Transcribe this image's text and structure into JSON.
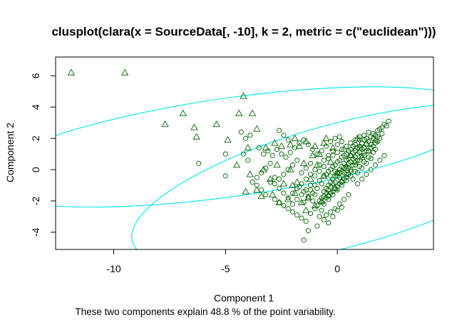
{
  "chart_data": {
    "type": "scatter",
    "title": "clusplot(clara(x = SourceData[, -10], k = 2, metric = c(\"euclidean\")))",
    "xlabel": "Component 1",
    "ylabel": "Component 2",
    "subtitle": "These two components explain 48.8 % of the point variability.",
    "xlim": [
      -12.6,
      4.3
    ],
    "ylim": [
      -5.1,
      7.2
    ],
    "xticks": [
      -10,
      -5,
      0
    ],
    "yticks": [
      -4,
      -2,
      0,
      2,
      4,
      6
    ],
    "grid": false,
    "legend": "none",
    "colors": {
      "points": "#006400",
      "ellipse": "#00e5ee",
      "frame": "#000000"
    },
    "clusters": [
      {
        "marker": "circle",
        "ellipse": {
          "center": [
            0.2,
            -1.0
          ],
          "rx": 9.7,
          "ry": 3.95,
          "rotation_deg": 15
        },
        "points": [
          [
            2.3,
            3.1
          ],
          [
            2.1,
            2.9
          ],
          [
            2.0,
            2.7
          ],
          [
            1.9,
            2.6
          ],
          [
            2.2,
            2.8
          ],
          [
            1.8,
            2.5
          ],
          [
            1.6,
            2.3
          ],
          [
            1.7,
            2.2
          ],
          [
            1.5,
            2.1
          ],
          [
            1.4,
            2.4
          ],
          [
            1.3,
            2.0
          ],
          [
            1.2,
            1.9
          ],
          [
            1.1,
            1.7
          ],
          [
            1.0,
            1.5
          ],
          [
            0.9,
            1.4
          ],
          [
            0.8,
            1.2
          ],
          [
            0.7,
            1.1
          ],
          [
            0.6,
            0.9
          ],
          [
            0.5,
            0.7
          ],
          [
            0.4,
            0.6
          ],
          [
            0.3,
            0.4
          ],
          [
            0.2,
            0.2
          ],
          [
            0.1,
            0.0
          ],
          [
            0.0,
            -0.2
          ],
          [
            -0.1,
            -0.4
          ],
          [
            -0.2,
            -0.6
          ],
          [
            -0.3,
            -0.8
          ],
          [
            -0.4,
            -1.0
          ],
          [
            -0.5,
            -1.2
          ],
          [
            -0.6,
            -1.4
          ],
          [
            1.5,
            1.6
          ],
          [
            1.3,
            1.2
          ],
          [
            1.1,
            0.9
          ],
          [
            0.9,
            0.6
          ],
          [
            0.7,
            0.3
          ],
          [
            0.5,
            0.1
          ],
          [
            0.3,
            -0.2
          ],
          [
            0.1,
            -0.5
          ],
          [
            -0.1,
            -0.8
          ],
          [
            -0.3,
            -1.1
          ],
          [
            -0.5,
            -1.5
          ],
          [
            -0.7,
            -1.8
          ],
          [
            1.6,
            1.1
          ],
          [
            1.4,
            0.8
          ],
          [
            1.2,
            0.5
          ],
          [
            1.0,
            0.2
          ],
          [
            0.8,
            -0.1
          ],
          [
            0.6,
            -0.4
          ],
          [
            0.4,
            -0.7
          ],
          [
            0.2,
            -1.0
          ],
          [
            0.0,
            -1.3
          ],
          [
            -0.2,
            -1.6
          ],
          [
            -0.4,
            -1.9
          ],
          [
            -0.6,
            -2.2
          ],
          [
            1.0,
            1.9
          ],
          [
            0.8,
            1.6
          ],
          [
            0.6,
            1.3
          ],
          [
            0.4,
            1.0
          ],
          [
            0.2,
            0.8
          ],
          [
            0.0,
            0.5
          ],
          [
            -0.2,
            0.2
          ],
          [
            -0.4,
            -0.1
          ],
          [
            -0.6,
            -0.4
          ],
          [
            -0.8,
            -0.7
          ],
          [
            -1.0,
            -1.0
          ],
          [
            -1.2,
            -1.3
          ],
          [
            1.9,
            2.0
          ],
          [
            1.7,
            1.7
          ],
          [
            1.5,
            1.4
          ],
          [
            1.3,
            1.6
          ],
          [
            1.1,
            1.3
          ],
          [
            0.9,
            1.0
          ],
          [
            0.7,
            0.7
          ],
          [
            0.5,
            0.4
          ],
          [
            0.3,
            0.1
          ],
          [
            0.1,
            -0.2
          ],
          [
            -0.1,
            -0.1
          ],
          [
            -0.3,
            -0.4
          ],
          [
            0.2,
            1.8
          ],
          [
            0.0,
            1.6
          ],
          [
            -0.2,
            1.2
          ],
          [
            -0.4,
            0.9
          ],
          [
            -0.6,
            0.6
          ],
          [
            -0.8,
            0.3
          ],
          [
            -1.0,
            0.0
          ],
          [
            -1.2,
            -0.3
          ],
          [
            -1.4,
            -0.6
          ],
          [
            -1.6,
            -0.9
          ],
          [
            -1.8,
            -1.2
          ],
          [
            -2.0,
            -1.5
          ],
          [
            0.5,
            -1.6
          ],
          [
            0.3,
            -1.9
          ],
          [
            0.1,
            -2.2
          ],
          [
            -0.1,
            -2.5
          ],
          [
            -0.3,
            -2.7
          ],
          [
            -0.5,
            -2.9
          ],
          [
            -0.7,
            -2.6
          ],
          [
            -0.9,
            -2.3
          ],
          [
            -1.1,
            -2.0
          ],
          [
            -1.3,
            -1.7
          ],
          [
            -1.5,
            -1.4
          ],
          [
            -1.7,
            -1.1
          ],
          [
            0.6,
            0.0
          ],
          [
            0.4,
            -0.3
          ],
          [
            0.9,
            -0.2
          ],
          [
            1.1,
            0.1
          ],
          [
            1.3,
            0.4
          ],
          [
            1.5,
            0.7
          ],
          [
            1.7,
            1.3
          ],
          [
            1.8,
            1.8
          ],
          [
            2.0,
            2.3
          ],
          [
            1.2,
            2.2
          ],
          [
            1.0,
            2.1
          ],
          [
            0.8,
            1.9
          ],
          [
            0.6,
            1.7
          ],
          [
            0.4,
            1.5
          ],
          [
            0.2,
            1.3
          ],
          [
            0.0,
            1.1
          ],
          [
            -0.2,
            0.9
          ],
          [
            -0.4,
            0.7
          ],
          [
            -0.6,
            0.2
          ],
          [
            -0.8,
            -0.1
          ],
          [
            -1.0,
            -0.4
          ],
          [
            -1.2,
            0.4
          ],
          [
            -1.4,
            0.1
          ],
          [
            -1.6,
            -0.2
          ],
          [
            -1.8,
            0.6
          ],
          [
            -2.0,
            0.3
          ],
          [
            -2.2,
            0.0
          ],
          [
            -2.4,
            -0.3
          ],
          [
            -2.6,
            -0.6
          ],
          [
            -2.8,
            -0.9
          ],
          [
            -3.0,
            0.4
          ],
          [
            -3.2,
            0.1
          ],
          [
            -3.4,
            -0.2
          ],
          [
            -3.6,
            -0.5
          ],
          [
            -3.8,
            -0.8
          ],
          [
            -2.5,
            1.0
          ],
          [
            -2.7,
            1.3
          ],
          [
            -2.9,
            0.9
          ],
          [
            -3.1,
            1.2
          ],
          [
            -3.3,
            1.0
          ],
          [
            -3.5,
            1.4
          ],
          [
            -2.3,
            0.8
          ],
          [
            -2.1,
            1.1
          ],
          [
            -1.9,
            1.4
          ],
          [
            -1.7,
            1.7
          ],
          [
            -1.5,
            1.9
          ],
          [
            -1.3,
            1.6
          ],
          [
            -1.1,
            1.3
          ],
          [
            -0.9,
            1.0
          ],
          [
            -0.7,
            1.2
          ],
          [
            -0.5,
            1.5
          ],
          [
            -0.3,
            1.8
          ],
          [
            -0.1,
            2.0
          ],
          [
            0.1,
            2.1
          ],
          [
            -2.6,
            2.5
          ],
          [
            -2.4,
            2.2
          ],
          [
            -2.2,
            1.9
          ],
          [
            -4.3,
            2.4
          ],
          [
            -3.9,
            2.2
          ],
          [
            -4.1,
            2.0
          ],
          [
            -5.0,
            1.0
          ],
          [
            -5.0,
            -0.4
          ],
          [
            -6.2,
            0.4
          ],
          [
            -4.2,
            1.0
          ],
          [
            -4.0,
            0.6
          ],
          [
            -3.6,
            -1.0
          ],
          [
            -3.4,
            -1.3
          ],
          [
            -3.2,
            -1.6
          ],
          [
            -2.8,
            -1.9
          ],
          [
            -2.6,
            -2.1
          ],
          [
            -2.4,
            -2.3
          ],
          [
            -2.2,
            -2.5
          ],
          [
            -2.0,
            -2.7
          ],
          [
            -1.8,
            -2.9
          ],
          [
            -1.6,
            -3.1
          ],
          [
            -1.4,
            -3.3
          ],
          [
            -1.2,
            -2.8
          ],
          [
            -1.0,
            -2.5
          ],
          [
            -0.8,
            -3.0
          ],
          [
            -0.6,
            -3.2
          ],
          [
            -0.4,
            -3.4
          ],
          [
            -0.2,
            -3.0
          ],
          [
            0.0,
            -2.6
          ],
          [
            0.2,
            -2.4
          ],
          [
            -1.3,
            -3.9
          ],
          [
            -1.5,
            -4.5
          ],
          [
            -0.9,
            -3.6
          ],
          [
            -0.7,
            -2.1
          ],
          [
            -0.5,
            -1.8
          ],
          [
            -0.3,
            -1.5
          ],
          [
            -0.1,
            -1.2
          ],
          [
            0.1,
            -0.9
          ],
          [
            0.3,
            -0.6
          ],
          [
            0.5,
            -0.3
          ],
          [
            0.7,
            -0.6
          ],
          [
            0.9,
            -0.9
          ],
          [
            1.1,
            -0.6
          ],
          [
            1.3,
            -0.3
          ],
          [
            1.5,
            0.0
          ],
          [
            1.7,
            0.3
          ],
          [
            1.9,
            0.6
          ],
          [
            2.1,
            0.9
          ],
          [
            1.6,
            2.0
          ],
          [
            1.4,
            1.8
          ],
          [
            1.2,
            1.4
          ],
          [
            1.0,
            1.1
          ],
          [
            0.8,
            0.8
          ],
          [
            0.6,
            0.5
          ],
          [
            0.4,
            0.2
          ],
          [
            0.2,
            -0.1
          ],
          [
            0.0,
            -0.4
          ],
          [
            -0.2,
            -0.9
          ],
          [
            -0.4,
            -1.3
          ],
          [
            -0.6,
            -1.7
          ],
          [
            -0.8,
            -2.0
          ],
          [
            -1.0,
            -1.6
          ],
          [
            -1.2,
            -1.0
          ],
          [
            -1.4,
            -1.3
          ],
          [
            -1.6,
            -1.6
          ],
          [
            -1.8,
            -1.9
          ],
          [
            -2.0,
            -2.2
          ],
          [
            -2.2,
            -1.8
          ],
          [
            -2.4,
            -1.5
          ],
          [
            -2.6,
            -1.2
          ],
          [
            -2.8,
            -0.5
          ],
          [
            -3.0,
            -0.8
          ],
          [
            0.7,
            1.5
          ],
          [
            0.5,
            1.2
          ],
          [
            0.3,
            0.9
          ],
          [
            0.1,
            0.6
          ],
          [
            -0.1,
            0.3
          ],
          [
            -0.3,
            0.0
          ],
          [
            -0.5,
            -0.3
          ],
          [
            -0.7,
            -0.9
          ],
          [
            -0.9,
            -1.2
          ],
          [
            -1.1,
            -1.5
          ],
          [
            -1.3,
            -1.8
          ],
          [
            -1.5,
            -2.1
          ],
          [
            1.8,
            2.1
          ],
          [
            1.6,
            1.5
          ],
          [
            1.4,
            1.2
          ],
          [
            1.2,
            0.9
          ],
          [
            1.0,
            0.6
          ],
          [
            0.8,
            0.3
          ],
          [
            0.6,
            -0.1
          ],
          [
            0.4,
            -0.5
          ],
          [
            0.2,
            -0.8
          ],
          [
            0.0,
            -1.1
          ],
          [
            -0.2,
            -1.4
          ],
          [
            -0.4,
            -1.7
          ]
        ]
      },
      {
        "marker": "triangle",
        "ellipse": {
          "center": [
            -4.7,
            1.45
          ],
          "rx": 11.3,
          "ry": 3.15,
          "rotation_deg": 8
        },
        "points": [
          [
            -11.9,
            6.2
          ],
          [
            -9.5,
            6.2
          ],
          [
            -4.2,
            4.7
          ],
          [
            -7.7,
            2.9
          ],
          [
            -6.9,
            3.6
          ],
          [
            -6.4,
            2.7
          ],
          [
            -6.3,
            2.1
          ],
          [
            -5.4,
            2.9
          ],
          [
            -4.4,
            3.6
          ],
          [
            -3.8,
            3.6
          ],
          [
            -4.9,
            1.9
          ],
          [
            -3.6,
            2.6
          ],
          [
            -4.0,
            1.4
          ],
          [
            -3.2,
            1.4
          ],
          [
            -2.8,
            1.7
          ],
          [
            -2.5,
            1.5
          ],
          [
            -2.1,
            1.6
          ],
          [
            -1.7,
            1.5
          ],
          [
            -1.4,
            1.8
          ],
          [
            -1.0,
            1.5
          ],
          [
            -0.6,
            1.7
          ],
          [
            -0.2,
            1.4
          ],
          [
            0.3,
            1.3
          ],
          [
            -4.5,
            0.3
          ],
          [
            -3.9,
            -0.3
          ],
          [
            -3.6,
            -1.3
          ],
          [
            -3.3,
            0.0
          ],
          [
            -3.0,
            -0.6
          ],
          [
            -2.7,
            0.3
          ],
          [
            -2.4,
            -0.9
          ],
          [
            -2.1,
            0.0
          ],
          [
            -1.8,
            -0.8
          ],
          [
            -1.5,
            0.4
          ],
          [
            -1.2,
            -0.6
          ],
          [
            -0.9,
            0.3
          ],
          [
            -0.6,
            -0.4
          ],
          [
            -0.3,
            0.5
          ],
          [
            0.0,
            -0.2
          ],
          [
            0.4,
            0.1
          ],
          [
            0.8,
            0.5
          ],
          [
            1.1,
            0.8
          ],
          [
            1.4,
            1.2
          ],
          [
            1.7,
            1.9
          ],
          [
            -2.9,
            -1.6
          ],
          [
            -2.6,
            -2.1
          ],
          [
            -2.2,
            -1.9
          ],
          [
            -1.9,
            -1.5
          ],
          [
            -1.6,
            -2.1
          ],
          [
            -1.3,
            -1.8
          ],
          [
            -1.0,
            -2.3
          ],
          [
            -0.7,
            -2.0
          ],
          [
            -0.4,
            -1.6
          ],
          [
            -0.1,
            -1.2
          ],
          [
            0.2,
            -0.7
          ],
          [
            -4.1,
            -1.4
          ],
          [
            -2.0,
            -1.0
          ],
          [
            -1.1,
            0.9
          ],
          [
            -0.8,
            1.0
          ],
          [
            0.6,
            0.9
          ],
          [
            1.0,
            1.4
          ],
          [
            1.3,
            1.7
          ],
          [
            0.9,
            2.0
          ],
          [
            -1.9,
            2.0
          ],
          [
            -0.5,
            2.0
          ],
          [
            -3.4,
            -1.7
          ],
          [
            -1.4,
            -2.6
          ]
        ]
      }
    ]
  }
}
